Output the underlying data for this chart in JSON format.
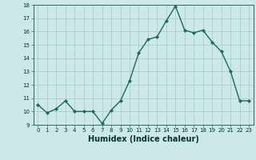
{
  "x": [
    0,
    1,
    2,
    3,
    4,
    5,
    6,
    7,
    8,
    9,
    10,
    11,
    12,
    13,
    14,
    15,
    16,
    17,
    18,
    19,
    20,
    21,
    22,
    23
  ],
  "y": [
    10.5,
    9.9,
    10.2,
    10.8,
    10.0,
    10.0,
    10.0,
    9.1,
    10.1,
    10.8,
    12.3,
    14.4,
    15.4,
    15.6,
    16.8,
    17.9,
    16.1,
    15.9,
    16.1,
    15.2,
    14.5,
    13.0,
    10.8,
    10.8
  ],
  "xlabel": "Humidex (Indice chaleur)",
  "ylim": [
    9,
    18
  ],
  "xlim_min": -0.5,
  "xlim_max": 23.5,
  "yticks": [
    9,
    10,
    11,
    12,
    13,
    14,
    15,
    16,
    17,
    18
  ],
  "xticks": [
    0,
    1,
    2,
    3,
    4,
    5,
    6,
    7,
    8,
    9,
    10,
    11,
    12,
    13,
    14,
    15,
    16,
    17,
    18,
    19,
    20,
    21,
    22,
    23
  ],
  "line_color": "#1a6b5a",
  "marker_color": "#1a6b5a",
  "bg_color": "#cce8e8",
  "grid_color": "#aacece",
  "xlabel_fontsize": 7,
  "tick_fontsize": 5,
  "linewidth": 1.0,
  "markersize": 2.0
}
